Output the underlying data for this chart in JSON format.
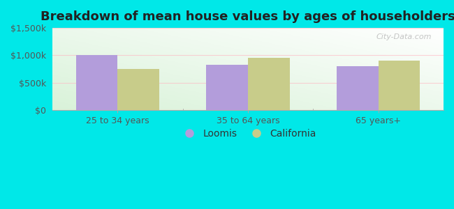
{
  "title": "Breakdown of mean house values by ages of householders",
  "categories": [
    "25 to 34 years",
    "35 to 64 years",
    "65 years+"
  ],
  "loomis_values": [
    1000000,
    825000,
    800000
  ],
  "california_values": [
    750000,
    950000,
    900000
  ],
  "loomis_color": "#b39ddb",
  "california_color": "#c8cc8a",
  "background_color": "#00e8e8",
  "ylim": [
    0,
    1500000
  ],
  "yticks": [
    0,
    500000,
    1000000,
    1500000
  ],
  "ytick_labels": [
    "$0",
    "$500k",
    "$1,000k",
    "$1,500k"
  ],
  "bar_width": 0.32,
  "legend_labels": [
    "Loomis",
    "California"
  ],
  "title_fontsize": 13,
  "tick_fontsize": 9,
  "legend_fontsize": 10,
  "watermark": "City-Data.com"
}
